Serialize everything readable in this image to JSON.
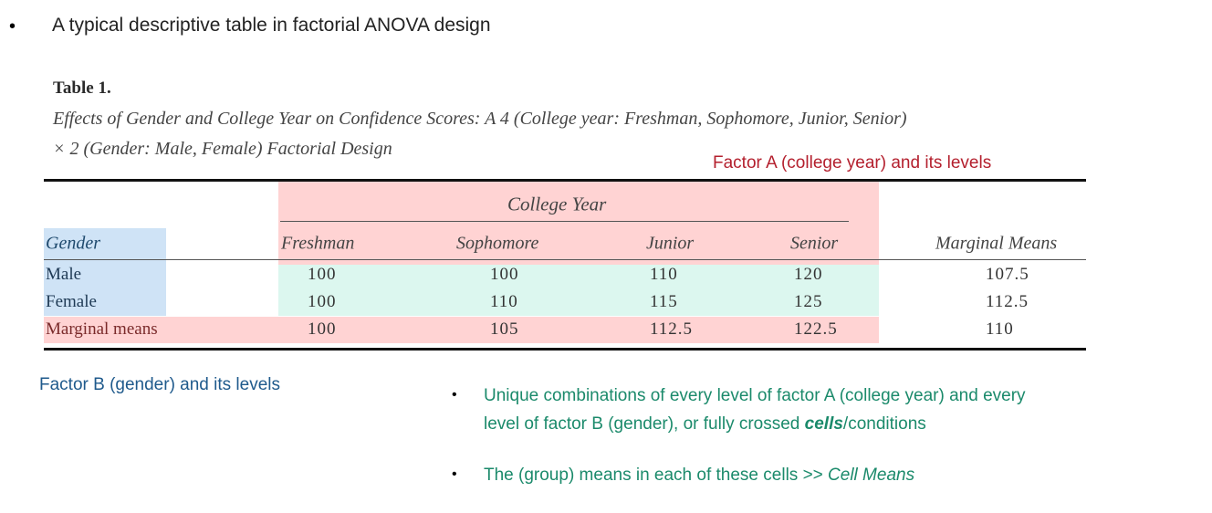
{
  "heading": "A typical descriptive table in factorial ANOVA design",
  "table": {
    "label": "Table 1.",
    "caption_line1": "Effects of Gender and College Year on Confidence Scores: A 4 (College year: Freshman, Sophomore, Junior, Senior)",
    "caption_line2": "× 2 (Gender: Male, Female) Factorial Design",
    "spanner": "College Year",
    "row_header": "Gender",
    "columns": [
      "Freshman",
      "Sophomore",
      "Junior",
      "Senior",
      "Marginal Means"
    ],
    "rows": [
      {
        "label": "Male",
        "values": [
          "100",
          "100",
          "110",
          "120",
          "107.5"
        ]
      },
      {
        "label": "Female",
        "values": [
          "100",
          "110",
          "115",
          "125",
          "112.5"
        ]
      },
      {
        "label": "Marginal means",
        "values": [
          "100",
          "105",
          "112.5",
          "122.5",
          "110"
        ]
      }
    ]
  },
  "annotations": {
    "factor_a": "Factor A (college year) and its levels",
    "factor_b": "Factor B (gender) and its levels",
    "bullet1_line1": "Unique combinations of every level of factor A (college year) and every",
    "bullet1_line2_pre": "level of factor B (gender), or fully crossed ",
    "bullet1_line2_em": "cells",
    "bullet1_line2_post": "/conditions",
    "bullet2_pre": "The (group) means in each of these cells >> ",
    "bullet2_em": "Cell Means"
  },
  "colors": {
    "factor_a": "#b4202e",
    "factor_b": "#1f5a8c",
    "cells": "#1b8a6b",
    "pink": "#ffd3d3",
    "green": "#dcf7ef",
    "blue": "#cfe3f6"
  }
}
